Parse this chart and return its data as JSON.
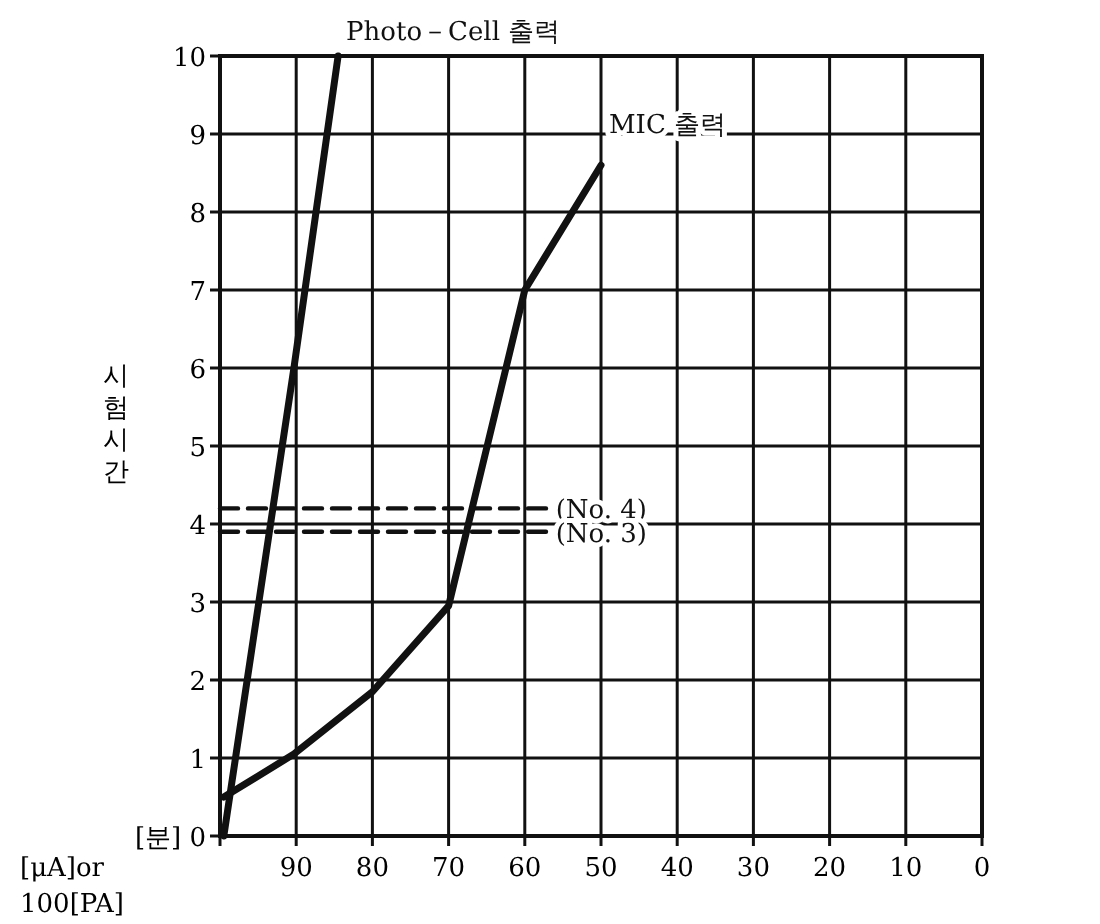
{
  "chart_data": {
    "type": "line",
    "ylabel": "시험시간",
    "xlabel": "[μA]or 100[PA]",
    "xlim": [
      100,
      0
    ],
    "xticks": [
      {
        "value": 100,
        "label": null
      },
      90,
      80,
      70,
      60,
      50,
      40,
      30,
      20,
      10,
      0
    ],
    "ylim": [
      0,
      10
    ],
    "yticks": [
      {
        "value": 0,
        "label": "[분] 0"
      },
      1,
      2,
      3,
      4,
      5,
      6,
      7,
      8,
      9,
      10
    ],
    "grid": true,
    "marker": "none",
    "series": [
      {
        "name": "Photo－Cell 출력",
        "color": "#111111",
        "line_style": "solid",
        "x": [
          99.5,
          90.3,
          84.5
        ],
        "values": [
          0,
          6,
          10
        ]
      },
      {
        "name": "MIC 출력",
        "color": "#111111",
        "line_style": "solid",
        "x": [
          99.5,
          90.3,
          80,
          70,
          60,
          50
        ],
        "values": [
          0.5,
          1.05,
          1.85,
          2.95,
          7,
          8.6
        ]
      },
      {
        "name": "(No. 4)",
        "color": "#111111",
        "line_style": "dashed",
        "x": [
          100,
          57
        ],
        "values": [
          4.2,
          4.2
        ]
      },
      {
        "name": "(No. 3)",
        "color": "#111111",
        "line_style": "dashed",
        "x": [
          100,
          57
        ],
        "values": [
          3.9,
          3.9
        ]
      }
    ]
  }
}
